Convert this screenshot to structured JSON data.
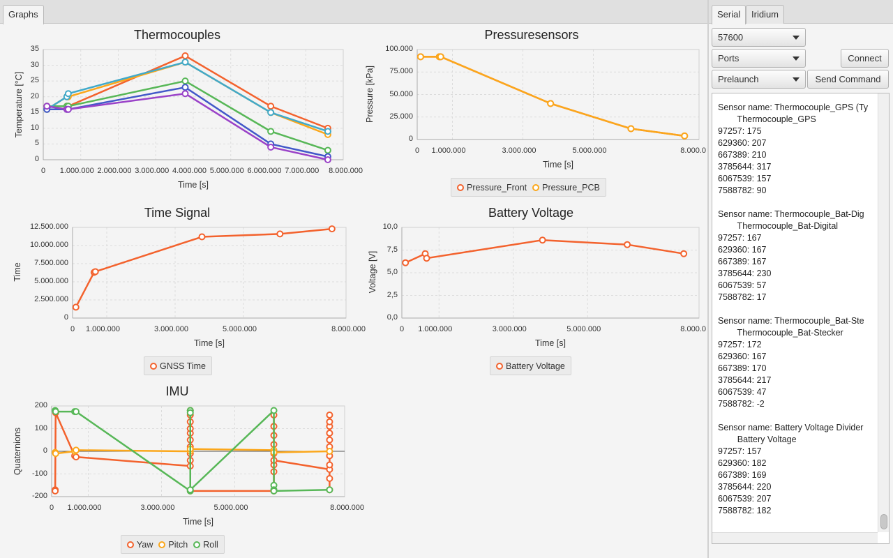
{
  "left_tabs": [
    {
      "label": "Graphs"
    }
  ],
  "right_tabs": [
    {
      "label": "Serial"
    },
    {
      "label": "Iridium"
    }
  ],
  "controls": {
    "baud_value": "57600",
    "ports_value": "Ports",
    "command_value": "Prelaunch",
    "connect_label": "Connect",
    "send_label": "Send Command"
  },
  "serial_log": "Sensor name: Thermocouple_GPS (Ty\n        Thermocouple_GPS\n97257: 175\n629360: 207\n667389: 210\n3785644: 317\n6067539: 157\n7588782: 90\n\nSensor name: Thermocouple_Bat-Dig\n        Thermocouple_Bat-Digital\n97257: 167\n629360: 167\n667389: 167\n3785644: 230\n6067539: 57\n7588782: 17\n\nSensor name: Thermocouple_Bat-Ste\n        Thermocouple_Bat-Stecker\n97257: 172\n629360: 167\n667389: 170\n3785644: 217\n6067539: 47\n7588782: -2\n\nSensor name: Battery Voltage Divider\n        Battery Voltage\n97257: 157\n629360: 182\n667389: 169\n3785644: 220\n6067539: 207\n7588782: 182",
  "colors": {
    "orange": "#f3622d",
    "yellow": "#fba71b",
    "green": "#57b757",
    "teal": "#41a9c9",
    "blue": "#4258c9",
    "purple": "#9a42c8"
  },
  "chart_data": [
    {
      "id": "thermo",
      "type": "line",
      "title": "Thermocouples",
      "xlabel": "Time [s]",
      "ylabel": "Temperature [°C]",
      "xlim": [
        0,
        8000000
      ],
      "ylim": [
        0,
        35
      ],
      "x_ticks": [
        "0",
        "1.000.000",
        "2.000.000",
        "3.000.000",
        "4.000.000",
        "5.000.000",
        "6.000.000",
        "7.000.000",
        "8.000.000"
      ],
      "y_ticks": [
        "0",
        "5",
        "10",
        "15",
        "20",
        "25",
        "30",
        "35"
      ],
      "x": [
        97257,
        629360,
        667389,
        3785644,
        6067539,
        7588782
      ],
      "series": [
        {
          "color": "#f3622d",
          "values": [
            17,
            17,
            17,
            33,
            17,
            10
          ]
        },
        {
          "color": "#fba71b",
          "values": [
            16,
            20,
            20,
            31,
            15,
            8
          ]
        },
        {
          "color": "#57b757",
          "values": [
            17,
            17,
            17,
            25,
            9,
            3
          ]
        },
        {
          "color": "#41a9c9",
          "values": [
            16,
            20,
            21,
            31,
            15,
            9
          ]
        },
        {
          "color": "#4258c9",
          "values": [
            16,
            16,
            16,
            23,
            5,
            1
          ]
        },
        {
          "color": "#9a42c8",
          "values": [
            17,
            16,
            16,
            21,
            4,
            0
          ]
        }
      ]
    },
    {
      "id": "pressure",
      "type": "line",
      "title": "Pressuresensors",
      "xlabel": "Time [s]",
      "ylabel": "Pressure [kPa]",
      "xlim": [
        0,
        8000000
      ],
      "ylim": [
        0,
        100000
      ],
      "x_ticks": [
        "0",
        "1.000.000",
        "3.000.000",
        "5.000.000",
        "8.000.0"
      ],
      "y_ticks": [
        "0",
        "25.000",
        "50.000",
        "75.000",
        "100.000"
      ],
      "x": [
        97257,
        629360,
        667389,
        3785644,
        6067539,
        7588782
      ],
      "series": [
        {
          "name": "Pressure_Front",
          "color": "#f3622d",
          "values": [
            92000,
            92000,
            92000,
            40000,
            12000,
            4000
          ]
        },
        {
          "name": "Pressure_PCB",
          "color": "#fba71b",
          "values": [
            92000,
            92000,
            92000,
            40000,
            12000,
            4000
          ]
        }
      ]
    },
    {
      "id": "time",
      "type": "line",
      "title": "Time Signal",
      "xlabel": "Time [s]",
      "ylabel": "Time",
      "xlim": [
        0,
        8000000
      ],
      "ylim": [
        0,
        12500000
      ],
      "x_ticks": [
        "0",
        "1.000.000",
        "3.000.000",
        "5.000.000",
        "8.000.000"
      ],
      "y_ticks": [
        "0",
        "2.500.000",
        "5.000.000",
        "7.500.000",
        "10.000.000",
        "12.500.000"
      ],
      "x": [
        97257,
        629360,
        667389,
        3785644,
        6067539,
        7588782
      ],
      "series": [
        {
          "name": "GNSS Time",
          "color": "#f3622d",
          "values": [
            1500000,
            6300000,
            6400000,
            11200000,
            11600000,
            12300000
          ]
        }
      ]
    },
    {
      "id": "battery",
      "type": "line",
      "title": "Battery Voltage",
      "xlabel": "Time [s]",
      "ylabel": "Voltage [V]",
      "xlim": [
        0,
        8000000
      ],
      "ylim": [
        0,
        10
      ],
      "x_ticks": [
        "0",
        "1.000.000",
        "3.000.000",
        "5.000.000",
        "8.000.0"
      ],
      "y_ticks": [
        "0,0",
        "2,5",
        "5,0",
        "7,5",
        "10,0"
      ],
      "x": [
        97257,
        629360,
        667389,
        3785644,
        6067539,
        7588782
      ],
      "series": [
        {
          "name": "Battery Voltage",
          "color": "#f3622d",
          "values": [
            6.1,
            7.1,
            6.6,
            8.6,
            8.1,
            7.1
          ]
        }
      ]
    },
    {
      "id": "imu",
      "type": "line",
      "title": "IMU",
      "xlabel": "Time [s]",
      "ylabel": "Quaternions",
      "xlim": [
        0,
        8000000
      ],
      "ylim": [
        -200,
        200
      ],
      "x_ticks": [
        "0",
        "1.000.000",
        "3.000.000",
        "5.000.000",
        "8.000.000"
      ],
      "y_ticks": [
        "-200",
        "-100",
        "0",
        "100",
        "200"
      ],
      "series": [
        {
          "name": "Yaw",
          "color": "#f3622d",
          "points": [
            [
              97257,
              -170
            ],
            [
              97257,
              -175
            ],
            [
              110000,
              170
            ],
            [
              629360,
              -20
            ],
            [
              667389,
              -25
            ],
            [
              3785644,
              -65
            ],
            [
              3785644,
              -40
            ],
            [
              3785644,
              -10
            ],
            [
              3785644,
              20
            ],
            [
              3785644,
              50
            ],
            [
              3785644,
              80
            ],
            [
              3785644,
              100
            ],
            [
              3785644,
              130
            ],
            [
              3785644,
              160
            ],
            [
              3785644,
              180
            ],
            [
              3785644,
              -175
            ],
            [
              6067539,
              -175
            ],
            [
              6067539,
              -90
            ],
            [
              6067539,
              -60
            ],
            [
              6067539,
              -40
            ],
            [
              6067539,
              -10
            ],
            [
              6067539,
              30
            ],
            [
              6067539,
              70
            ],
            [
              6067539,
              110
            ],
            [
              6067539,
              160
            ],
            [
              6067539,
              -40
            ],
            [
              7588782,
              -80
            ],
            [
              7588782,
              -170
            ],
            [
              7588782,
              -120
            ],
            [
              7588782,
              -60
            ],
            [
              7588782,
              -20
            ],
            [
              7588782,
              20
            ],
            [
              7588782,
              50
            ],
            [
              7588782,
              80
            ],
            [
              7588782,
              110
            ],
            [
              7588782,
              130
            ],
            [
              7588782,
              160
            ]
          ]
        },
        {
          "name": "Pitch",
          "color": "#fba71b",
          "points": [
            [
              97257,
              -5
            ],
            [
              110000,
              -10
            ],
            [
              629360,
              0
            ],
            [
              667389,
              5
            ],
            [
              3785644,
              0
            ],
            [
              3785644,
              10
            ],
            [
              6067539,
              5
            ],
            [
              6067539,
              -5
            ],
            [
              7588782,
              0
            ]
          ]
        },
        {
          "name": "Roll",
          "color": "#57b757",
          "points": [
            [
              97257,
              180
            ],
            [
              110000,
              175
            ],
            [
              629360,
              175
            ],
            [
              667389,
              175
            ],
            [
              3785644,
              -175
            ],
            [
              3785644,
              180
            ],
            [
              3785644,
              170
            ],
            [
              3785644,
              -170
            ],
            [
              6067539,
              180
            ],
            [
              6067539,
              -150
            ],
            [
              6067539,
              -170
            ],
            [
              6067539,
              -175
            ],
            [
              7588782,
              -170
            ]
          ]
        }
      ]
    }
  ]
}
